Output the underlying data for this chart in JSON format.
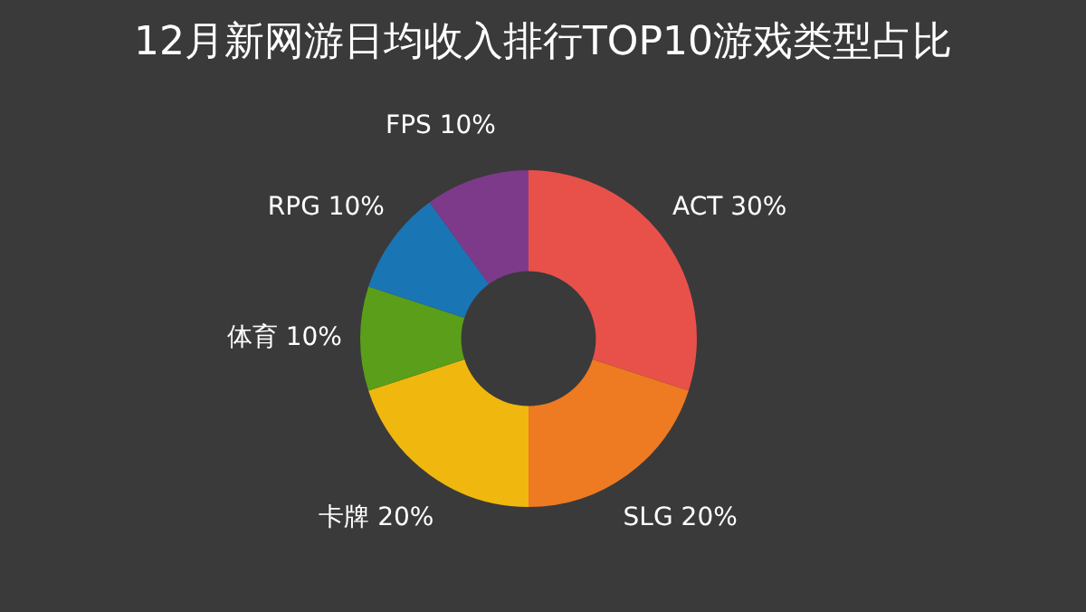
{
  "chart_data": {
    "type": "donut",
    "title": "12月新网游日均收入排行TOP10游戏类型占比",
    "categories": [
      "ACT",
      "SLG",
      "卡牌",
      "体育",
      "RPG",
      "FPS"
    ],
    "values": [
      30,
      20,
      20,
      10,
      10,
      10
    ],
    "value_labels": [
      "30%",
      "20%",
      "20%",
      "10%",
      "10%",
      "10%"
    ],
    "colors": [
      "#e8504a",
      "#ee7a22",
      "#f0b70e",
      "#5a9e1a",
      "#1a75b5",
      "#7e3a8a"
    ],
    "legend": false
  }
}
